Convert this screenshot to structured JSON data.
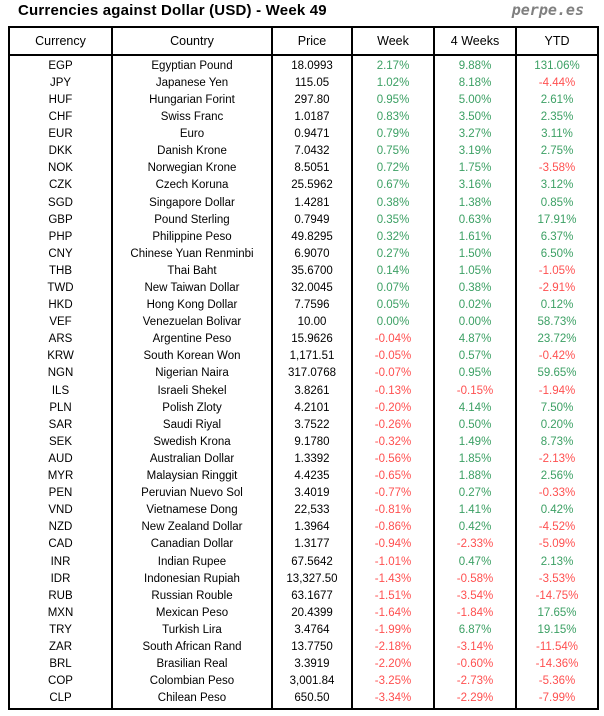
{
  "page_title": "Currencies against Dollar (USD) - Week 49",
  "logo_text": "perpe.es",
  "colors": {
    "positive_green": "#3CA064",
    "negative_red": "#FF5050",
    "border_black": "#000000",
    "logo_gray": "#808080",
    "text_black": "#000000"
  },
  "chart_data": {
    "type": "table",
    "title": "Currencies against Dollar (USD) - Week 49",
    "columns": [
      "Currency",
      "Country",
      "Price",
      "Week",
      "4 Weeks",
      "YTD"
    ],
    "rows": [
      [
        "EGP",
        "Egyptian Pound",
        "18.0993",
        "2.17%",
        "9.88%",
        "131.06%"
      ],
      [
        "JPY",
        "Japanese Yen",
        "115.05",
        "1.02%",
        "8.18%",
        "-4.44%"
      ],
      [
        "HUF",
        "Hungarian Forint",
        "297.80",
        "0.95%",
        "5.00%",
        "2.61%"
      ],
      [
        "CHF",
        "Swiss Franc",
        "1.0187",
        "0.83%",
        "3.50%",
        "2.35%"
      ],
      [
        "EUR",
        "Euro",
        "0.9471",
        "0.79%",
        "3.27%",
        "3.11%"
      ],
      [
        "DKK",
        "Danish Krone",
        "7.0432",
        "0.75%",
        "3.19%",
        "2.75%"
      ],
      [
        "NOK",
        "Norwegian Krone",
        "8.5051",
        "0.72%",
        "1.75%",
        "-3.58%"
      ],
      [
        "CZK",
        "Czech Koruna",
        "25.5962",
        "0.67%",
        "3.16%",
        "3.12%"
      ],
      [
        "SGD",
        "Singapore Dollar",
        "1.4281",
        "0.38%",
        "1.38%",
        "0.85%"
      ],
      [
        "GBP",
        "Pound Sterling",
        "0.7949",
        "0.35%",
        "0.63%",
        "17.91%"
      ],
      [
        "PHP",
        "Philippine Peso",
        "49.8295",
        "0.32%",
        "1.61%",
        "6.37%"
      ],
      [
        "CNY",
        "Chinese Yuan Renminbi",
        "6.9070",
        "0.27%",
        "1.50%",
        "6.50%"
      ],
      [
        "THB",
        "Thai Baht",
        "35.6700",
        "0.14%",
        "1.05%",
        "-1.05%"
      ],
      [
        "TWD",
        "New Taiwan Dollar",
        "32.0045",
        "0.07%",
        "0.38%",
        "-2.91%"
      ],
      [
        "HKD",
        "Hong Kong Dollar",
        "7.7596",
        "0.05%",
        "0.02%",
        "0.12%"
      ],
      [
        "VEF",
        "Venezuelan Bolivar",
        "10.00",
        "0.00%",
        "0.00%",
        "58.73%"
      ],
      [
        "ARS",
        "Argentine Peso",
        "15.9626",
        "-0.04%",
        "4.87%",
        "23.72%"
      ],
      [
        "KRW",
        "South Korean Won",
        "1,171.51",
        "-0.05%",
        "0.57%",
        "-0.42%"
      ],
      [
        "NGN",
        "Nigerian Naira",
        "317.0768",
        "-0.07%",
        "0.95%",
        "59.65%"
      ],
      [
        "ILS",
        "Israeli Shekel",
        "3.8261",
        "-0.13%",
        "-0.15%",
        "-1.94%"
      ],
      [
        "PLN",
        "Polish Zloty",
        "4.2101",
        "-0.20%",
        "4.14%",
        "7.50%"
      ],
      [
        "SAR",
        "Saudi Riyal",
        "3.7522",
        "-0.26%",
        "0.50%",
        "0.20%"
      ],
      [
        "SEK",
        "Swedish Krona",
        "9.1780",
        "-0.32%",
        "1.49%",
        "8.73%"
      ],
      [
        "AUD",
        "Australian Dollar",
        "1.3392",
        "-0.56%",
        "1.85%",
        "-2.13%"
      ],
      [
        "MYR",
        "Malaysian Ringgit",
        "4.4235",
        "-0.65%",
        "1.88%",
        "2.56%"
      ],
      [
        "PEN",
        "Peruvian Nuevo Sol",
        "3.4019",
        "-0.77%",
        "0.27%",
        "-0.33%"
      ],
      [
        "VND",
        "Vietnamese Dong",
        "22,533",
        "-0.81%",
        "1.41%",
        "0.42%"
      ],
      [
        "NZD",
        "New Zealand Dollar",
        "1.3964",
        "-0.86%",
        "0.42%",
        "-4.52%"
      ],
      [
        "CAD",
        "Canadian Dollar",
        "1.3177",
        "-0.94%",
        "-2.33%",
        "-5.09%"
      ],
      [
        "INR",
        "Indian Rupee",
        "67.5642",
        "-1.01%",
        "0.47%",
        "2.13%"
      ],
      [
        "IDR",
        "Indonesian Rupiah",
        "13,327.50",
        "-1.43%",
        "-0.58%",
        "-3.53%"
      ],
      [
        "RUB",
        "Russian Rouble",
        "63.1677",
        "-1.51%",
        "-3.54%",
        "-14.75%"
      ],
      [
        "MXN",
        "Mexican Peso",
        "20.4399",
        "-1.64%",
        "-1.84%",
        "17.65%"
      ],
      [
        "TRY",
        "Turkish Lira",
        "3.4764",
        "-1.99%",
        "6.87%",
        "19.15%"
      ],
      [
        "ZAR",
        "South African Rand",
        "13.7750",
        "-2.18%",
        "-3.14%",
        "-11.54%"
      ],
      [
        "BRL",
        "Brasilian Real",
        "3.3919",
        "-2.20%",
        "-0.60%",
        "-14.36%"
      ],
      [
        "COP",
        "Colombian Peso",
        "3,001.84",
        "-3.25%",
        "-2.73%",
        "-5.36%"
      ],
      [
        "CLP",
        "Chilean Peso",
        "650.50",
        "-3.34%",
        "-2.29%",
        "-7.99%"
      ]
    ]
  }
}
